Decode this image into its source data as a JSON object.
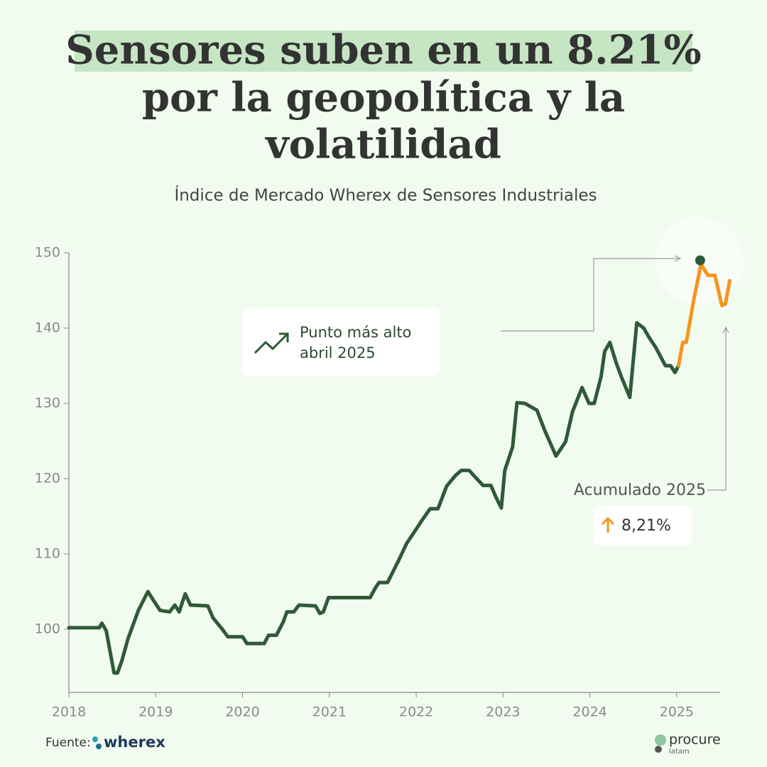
{
  "chart_data": {
    "type": "line",
    "title_lines": [
      "Sensores suben en un 8.21%",
      "por la geopolítica y la",
      "volatilidad"
    ],
    "subtitle": "Índice de Mercado Wherex de Sensores Industriales",
    "xlim": [
      2018,
      2025.5
    ],
    "xticks": [
      2018,
      2019,
      2020,
      2021,
      2022,
      2023,
      2024,
      2025
    ],
    "ylim": [
      91.6,
      150
    ],
    "yticks": [
      100,
      110,
      120,
      130,
      140,
      150
    ],
    "grid": false,
    "series": [
      {
        "color": "#2f5a38",
        "x": [
          2018.0,
          2018.35,
          2018.38,
          2018.43,
          2018.52,
          2018.56,
          2018.61,
          2018.68,
          2018.8,
          2018.91,
          2018.97,
          2019.05,
          2019.16,
          2019.22,
          2019.27,
          2019.34,
          2019.4,
          2019.6,
          2019.66,
          2019.76,
          2019.83,
          2020.0,
          2020.05,
          2020.25,
          2020.3,
          2020.39,
          2020.47,
          2020.51,
          2020.59,
          2020.65,
          2020.84,
          2020.89,
          2020.93,
          2020.99,
          2021.47,
          2021.52,
          2021.57,
          2021.67,
          2021.8,
          2021.89,
          2022.0,
          2022.08,
          2022.16,
          2022.25,
          2022.35,
          2022.45,
          2022.52,
          2022.61,
          2022.68,
          2022.77,
          2022.86,
          2022.92,
          2022.98,
          2023.02,
          2023.11,
          2023.16,
          2023.25,
          2023.39,
          2023.48,
          2023.61,
          2023.72,
          2023.8,
          2023.91,
          2023.99,
          2024.05,
          2024.13,
          2024.17,
          2024.23,
          2024.3,
          2024.36,
          2024.46,
          2024.54,
          2024.62,
          2024.68,
          2024.76,
          2024.87,
          2024.93,
          2024.98,
          2025.02
        ],
        "values": [
          100.2,
          100.2,
          100.8,
          99.8,
          94.2,
          94.2,
          95.8,
          98.7,
          102.5,
          105,
          103.9,
          102.5,
          102.3,
          103.2,
          102.3,
          104.7,
          103.2,
          103.1,
          101.5,
          100.1,
          99,
          99,
          98.1,
          98.1,
          99.2,
          99.2,
          101,
          102.3,
          102.3,
          103.2,
          103.1,
          102.1,
          102.3,
          104.2,
          104.2,
          105.3,
          106.2,
          106.2,
          109.2,
          111.4,
          113.3,
          114.7,
          116,
          116,
          119,
          120.4,
          121.1,
          121.1,
          120.2,
          119.1,
          119.1,
          117.5,
          116.1,
          121.1,
          124.2,
          130.1,
          130,
          129.1,
          126.4,
          123,
          124.9,
          128.9,
          132.1,
          130,
          130,
          133.6,
          136.9,
          138.1,
          135.5,
          133.6,
          130.8,
          140.7,
          140,
          138.8,
          137.4,
          135,
          135,
          134.1,
          135
        ]
      },
      {
        "color": "#f7941d",
        "x": [
          2025.02,
          2025.07,
          2025.11,
          2025.2,
          2025.28,
          2025.36,
          2025.44,
          2025.52,
          2025.56,
          2025.61
        ],
        "values": [
          135,
          138.1,
          138.1,
          144,
          148.5,
          147,
          147,
          143,
          143.2,
          146.3
        ]
      }
    ],
    "peak": {
      "x": 2025.27,
      "y": 149,
      "color": "#2f5a38"
    },
    "peak_note": [
      "Punto más alto",
      "abril 2025"
    ],
    "accumulated": {
      "label": "Acumulado 2025",
      "value": 8.21,
      "value_label": "8,21%"
    }
  },
  "footer": {
    "source": "Fuente:",
    "source_logo": "wherex",
    "brand": "procure",
    "brand_sub": "latam"
  }
}
